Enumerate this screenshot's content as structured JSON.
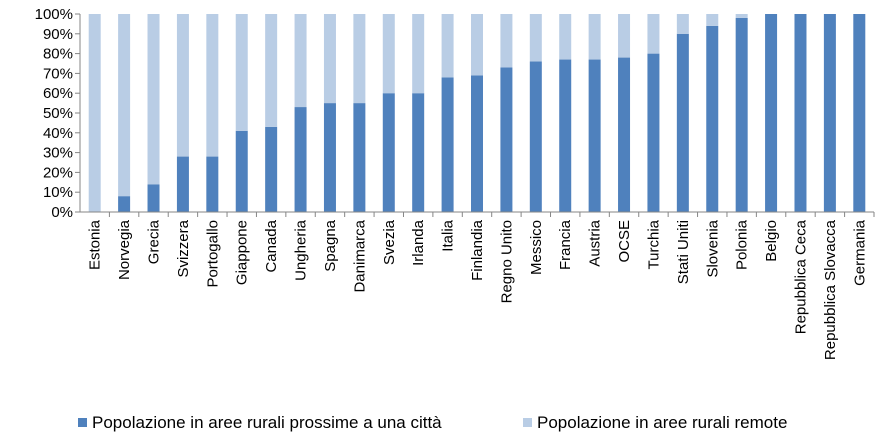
{
  "colors": {
    "near_city": "#4f81bd",
    "remote": "#b9cde5",
    "axis": "#868686"
  },
  "chart_data": {
    "type": "bar",
    "stacked": true,
    "percent": true,
    "title": "",
    "xlabel": "",
    "ylabel": "",
    "ylim": [
      0,
      100
    ],
    "y_ticks": [
      "0%",
      "10%",
      "20%",
      "30%",
      "40%",
      "50%",
      "60%",
      "70%",
      "80%",
      "90%",
      "100%"
    ],
    "grid": false,
    "legend_position": "bottom",
    "categories": [
      "Estonia",
      "Norvegia",
      "Grecia",
      "Svizzera",
      "Portogallo",
      "Giappone",
      "Canada",
      "Ungheria",
      "Spagna",
      "Danimarca",
      "Svezia",
      "Irlanda",
      "Italia",
      "Finlandia",
      "Regno Unito",
      "Messico",
      "Francia",
      "Austria",
      "OCSE",
      "Turchia",
      "Stati Uniti",
      "Slovenia",
      "Polonia",
      "Belgio",
      "Repubblica Ceca",
      "Repubblica Slovacca",
      "Germania"
    ],
    "series": [
      {
        "name": "Popolazione in aree rurali prossime a una città",
        "color_key": "near_city",
        "values": [
          0,
          8,
          14,
          28,
          28,
          41,
          43,
          53,
          55,
          55,
          60,
          60,
          68,
          69,
          73,
          76,
          77,
          77,
          78,
          80,
          90,
          94,
          98,
          100,
          100,
          100,
          100
        ]
      },
      {
        "name": "Popolazione in aree rurali remote",
        "color_key": "remote",
        "values": [
          100,
          92,
          86,
          72,
          72,
          59,
          57,
          47,
          45,
          45,
          40,
          40,
          32,
          31,
          27,
          24,
          23,
          23,
          22,
          20,
          10,
          6,
          2,
          0,
          0,
          0,
          0
        ]
      }
    ]
  }
}
